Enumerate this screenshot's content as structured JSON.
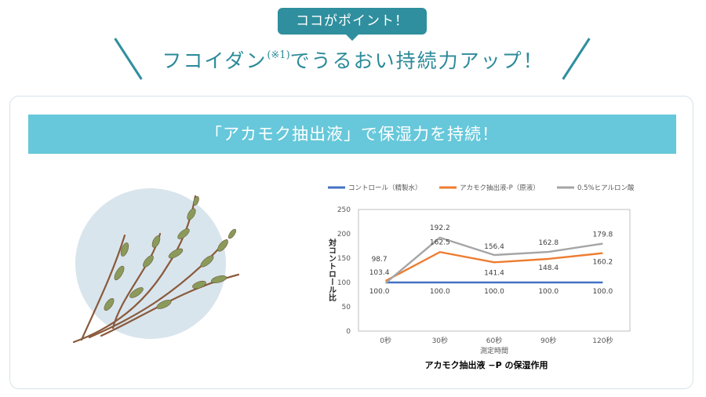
{
  "header": {
    "badge": "ココがポイント！",
    "headline_main": "フコイダン",
    "headline_sup": "(※1)",
    "headline_rest": "でうるおい持続力アップ！"
  },
  "banner": {
    "text": "「アカモク抽出液」で保湿力を持続！"
  },
  "colors": {
    "accent": "#2f8f9e",
    "banner": "#66c8da",
    "series_control": "#4472c4",
    "series_akamoku": "#ed7d31",
    "series_hyaluronic": "#a5a5a5"
  },
  "chart_data": {
    "type": "line",
    "title": "アカモク抽出液 −P の保湿作用",
    "xlabel": "測定時間",
    "ylabel": "対コントロール比",
    "ylim": [
      0,
      250
    ],
    "yticks": [
      0,
      50,
      100,
      150,
      200,
      250
    ],
    "categories": [
      "0秒",
      "30秒",
      "60秒",
      "90秒",
      "120秒"
    ],
    "legend_position": "top",
    "grid": false,
    "series": [
      {
        "name": "コントロール（精製水）",
        "color": "#4472c4",
        "values": [
          100.0,
          100.0,
          100.0,
          100.0,
          100.0
        ]
      },
      {
        "name": "アカモク抽出液-P（原液）",
        "color": "#ed7d31",
        "values": [
          103.4,
          162.5,
          141.4,
          148.4,
          160.2
        ]
      },
      {
        "name": "0.5%ヒアルロン酸",
        "color": "#a5a5a5",
        "values": [
          98.7,
          192.2,
          156.4,
          162.8,
          179.8
        ]
      }
    ]
  }
}
